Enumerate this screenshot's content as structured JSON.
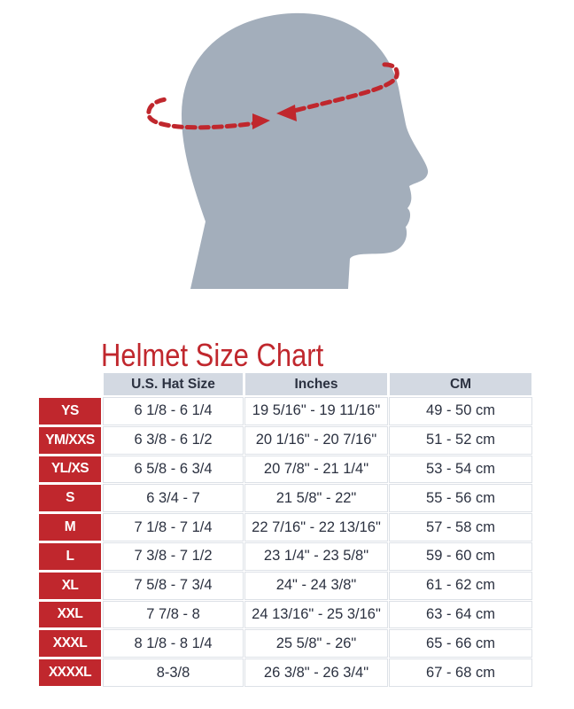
{
  "title": "Helmet Size Chart",
  "colors": {
    "accent_red": "#c0272d",
    "header_bg": "#d3d9e2",
    "head_gray": "#a3aebb"
  },
  "illustration": {
    "icon": "head-profile-with-measuring-tape-icon"
  },
  "table": {
    "headers": [
      "U.S. Hat Size",
      "Inches",
      "CM"
    ],
    "rows": [
      {
        "size": "YS",
        "hat": "6 1/8 - 6 1/4",
        "inches": "19 5/16\" - 19 11/16\"",
        "cm": "49 - 50 cm"
      },
      {
        "size": "YM/XXS",
        "hat": "6 3/8 - 6 1/2",
        "inches": "20 1/16\" - 20 7/16\"",
        "cm": "51 - 52 cm"
      },
      {
        "size": "YL/XS",
        "hat": "6 5/8 - 6 3/4",
        "inches": "20 7/8\" - 21 1/4\"",
        "cm": "53 - 54 cm"
      },
      {
        "size": "S",
        "hat": "6 3/4 - 7",
        "inches": "21 5/8\" - 22\"",
        "cm": "55 - 56 cm"
      },
      {
        "size": "M",
        "hat": "7 1/8 - 7 1/4",
        "inches": "22 7/16\" - 22 13/16\"",
        "cm": "57 - 58 cm"
      },
      {
        "size": "L",
        "hat": "7 3/8 - 7 1/2",
        "inches": "23 1/4\" - 23 5/8\"",
        "cm": "59 - 60 cm"
      },
      {
        "size": "XL",
        "hat": "7 5/8 - 7 3/4",
        "inches": "24\" - 24 3/8\"",
        "cm": "61 - 62 cm"
      },
      {
        "size": "XXL",
        "hat": "7 7/8 - 8",
        "inches": "24 13/16\" - 25 3/16\"",
        "cm": "63 - 64 cm"
      },
      {
        "size": "XXXL",
        "hat": "8 1/8 - 8 1/4",
        "inches": "25 5/8\" - 26\"",
        "cm": "65 - 66 cm"
      },
      {
        "size": "XXXXL",
        "hat": "8-3/8",
        "inches": "26 3/8\" - 26 3/4\"",
        "cm": "67 - 68 cm"
      }
    ]
  }
}
